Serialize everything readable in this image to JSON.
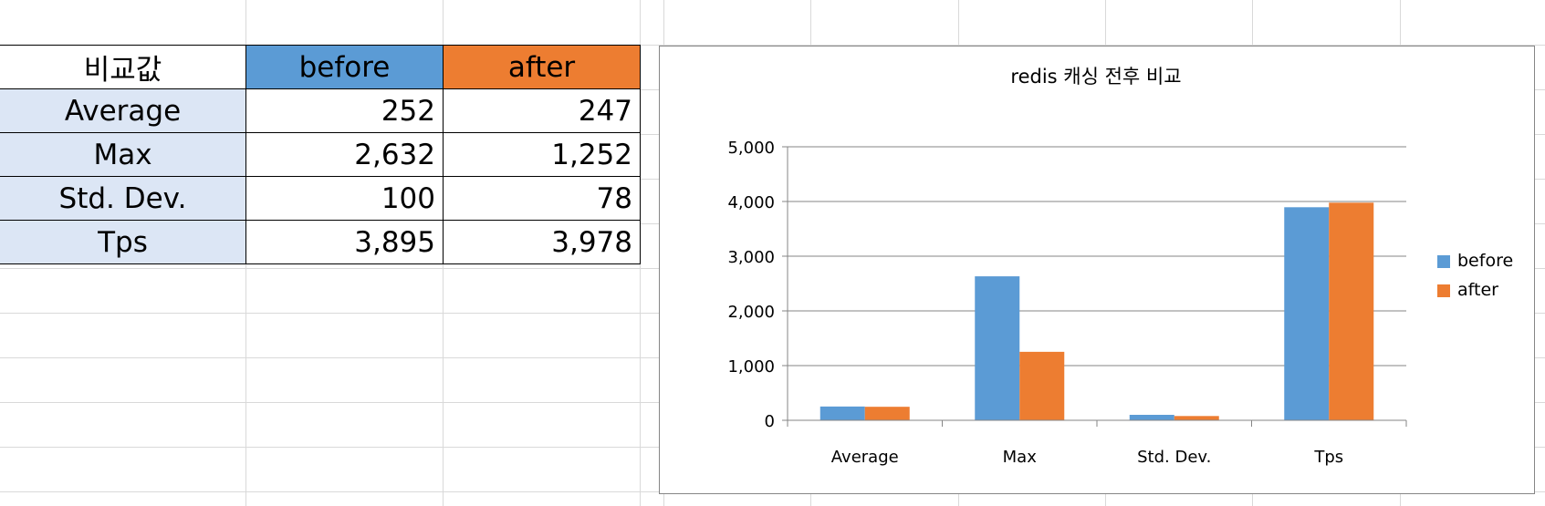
{
  "table": {
    "header": [
      "비교값",
      "before",
      "after"
    ],
    "rows": [
      {
        "label": "Average",
        "before": "252",
        "after": "247"
      },
      {
        "label": "Max",
        "before": "2,632",
        "after": "1,252"
      },
      {
        "label": "Std. Dev.",
        "before": "100",
        "after": "78"
      },
      {
        "label": "Tps",
        "before": "3,895",
        "after": "3,978"
      }
    ]
  },
  "colors": {
    "before": "#5b9bd5",
    "after": "#ed7d31",
    "row_label_bg": "#dce6f5"
  },
  "chart_data": {
    "type": "bar",
    "title": "redis 캐싱 전후 비교",
    "categories": [
      "Average",
      "Max",
      "Std. Dev.",
      "Tps"
    ],
    "series": [
      {
        "name": "before",
        "color": "#5b9bd5",
        "values": [
          252,
          2632,
          100,
          3895
        ]
      },
      {
        "name": "after",
        "color": "#ed7d31",
        "values": [
          247,
          1252,
          78,
          3978
        ]
      }
    ],
    "ylim": [
      0,
      5000
    ],
    "yticks": [
      0,
      1000,
      2000,
      3000,
      4000,
      5000
    ],
    "ytick_labels": [
      "0",
      "1,000",
      "2,000",
      "3,000",
      "4,000",
      "5,000"
    ],
    "grid": true,
    "legend": "right"
  }
}
